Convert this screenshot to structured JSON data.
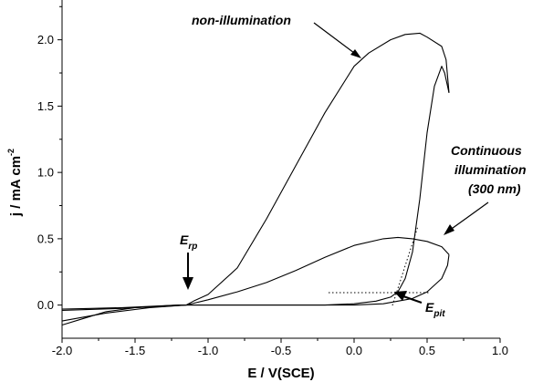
{
  "chart_data": {
    "type": "line",
    "xlabel": "E / V(SCE)",
    "ylabel_parts": {
      "main": "j / mA cm",
      "sup": "-2"
    },
    "xlim": [
      -2.0,
      1.0
    ],
    "ylim": [
      -0.25,
      2.3
    ],
    "x_ticks": [
      -2.0,
      -1.5,
      -1.0,
      -0.5,
      0.0,
      0.5,
      1.0
    ],
    "x_tick_labels": [
      "-2.0",
      "-1.5",
      "-1.0",
      "-0.5",
      "0.0",
      "0.5",
      "1.0"
    ],
    "y_ticks": [
      0.0,
      0.5,
      1.0,
      1.5,
      2.0
    ],
    "y_tick_labels": [
      "0.0",
      "0.5",
      "1.0",
      "1.5",
      "2.0"
    ],
    "grid": false,
    "series": [
      {
        "forward": [
          [
            -2.0,
            -0.03
          ],
          [
            -1.8,
            -0.025
          ],
          [
            -1.6,
            -0.02
          ],
          [
            -1.4,
            -0.01
          ],
          [
            -1.2,
            0.0
          ],
          [
            -1.0,
            0.0
          ],
          [
            -0.8,
            0.0
          ],
          [
            -0.6,
            0.0
          ],
          [
            -0.4,
            0.0
          ],
          [
            -0.2,
            0.0
          ],
          [
            0.0,
            0.01
          ],
          [
            0.15,
            0.03
          ],
          [
            0.25,
            0.06
          ],
          [
            0.3,
            0.1
          ],
          [
            0.35,
            0.2
          ],
          [
            0.4,
            0.4
          ],
          [
            0.45,
            0.8
          ],
          [
            0.5,
            1.3
          ],
          [
            0.55,
            1.65
          ],
          [
            0.6,
            1.8
          ],
          [
            0.62,
            1.75
          ],
          [
            0.65,
            1.6
          ]
        ],
        "reverse": [
          [
            0.65,
            1.6
          ],
          [
            0.63,
            1.85
          ],
          [
            0.6,
            1.95
          ],
          [
            0.5,
            2.02
          ],
          [
            0.45,
            2.05
          ],
          [
            0.35,
            2.04
          ],
          [
            0.25,
            2.0
          ],
          [
            0.1,
            1.9
          ],
          [
            0.0,
            1.8
          ],
          [
            -0.2,
            1.45
          ],
          [
            -0.4,
            1.05
          ],
          [
            -0.6,
            0.65
          ],
          [
            -0.8,
            0.28
          ],
          [
            -1.0,
            0.08
          ],
          [
            -1.1,
            0.03
          ],
          [
            -1.15,
            0.0
          ],
          [
            -1.3,
            -0.01
          ],
          [
            -1.5,
            -0.02
          ],
          [
            -1.7,
            -0.05
          ],
          [
            -1.85,
            -0.1
          ],
          [
            -2.0,
            -0.15
          ]
        ]
      },
      {
        "forward": [
          [
            -2.0,
            -0.04
          ],
          [
            -1.6,
            -0.025
          ],
          [
            -1.2,
            0.0
          ],
          [
            -0.8,
            0.0
          ],
          [
            -0.4,
            0.0
          ],
          [
            0.0,
            0.0
          ],
          [
            0.2,
            0.01
          ],
          [
            0.4,
            0.05
          ],
          [
            0.5,
            0.1
          ],
          [
            0.6,
            0.2
          ],
          [
            0.64,
            0.3
          ],
          [
            0.65,
            0.38
          ]
        ],
        "reverse": [
          [
            0.65,
            0.38
          ],
          [
            0.6,
            0.44
          ],
          [
            0.5,
            0.48
          ],
          [
            0.4,
            0.5
          ],
          [
            0.3,
            0.51
          ],
          [
            0.2,
            0.5
          ],
          [
            0.0,
            0.45
          ],
          [
            -0.2,
            0.36
          ],
          [
            -0.4,
            0.26
          ],
          [
            -0.6,
            0.17
          ],
          [
            -0.8,
            0.1
          ],
          [
            -1.0,
            0.04
          ],
          [
            -1.15,
            0.0
          ],
          [
            -1.4,
            -0.02
          ],
          [
            -1.7,
            -0.06
          ],
          [
            -2.0,
            -0.12
          ]
        ]
      }
    ],
    "annotations": [
      {
        "text": "non-illumination"
      },
      {
        "lines": [
          "Continuous",
          "illumination",
          "(300 nm)"
        ]
      },
      {
        "main": "E",
        "sub": "rp"
      },
      {
        "main": "E",
        "sub": "pit"
      }
    ]
  }
}
